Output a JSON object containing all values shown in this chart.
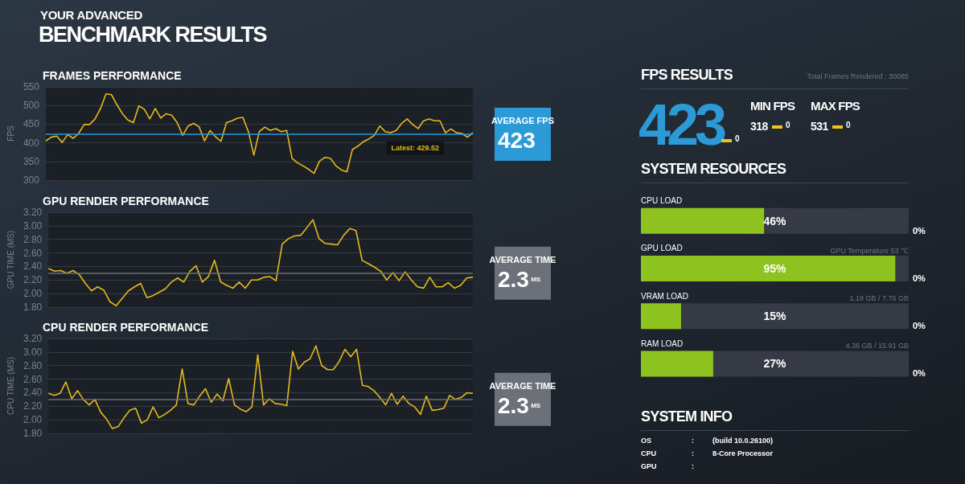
{
  "chart_data": [
    {
      "type": "other",
      "title": "YOUR ADVANCED",
      "subtitle": "BENCHMARK RESULTS"
    },
    {
      "type": "line",
      "title": "FRAMES PERFORMANCE",
      "ylabel": "FPS",
      "ylim": [
        300,
        550
      ],
      "yticks": [
        300,
        350,
        400,
        450,
        500,
        550
      ],
      "grid": "y",
      "tick_labels": "y",
      "marker": "none",
      "categories": [
        null,
        null,
        null,
        null,
        null,
        null,
        null,
        null,
        null,
        null,
        null,
        null,
        null,
        null,
        null,
        null,
        null,
        null,
        null,
        null,
        null,
        null,
        null,
        null,
        null,
        null,
        null,
        null,
        null,
        null,
        null,
        null,
        null,
        null,
        null,
        null,
        null,
        null,
        null,
        null,
        null,
        null,
        null,
        null,
        null,
        null,
        null,
        null,
        null,
        null,
        null,
        null,
        null,
        null,
        null,
        null,
        null,
        null,
        null,
        null,
        null,
        null,
        null,
        null,
        null,
        null,
        null,
        null,
        null,
        null,
        null,
        null,
        null,
        null,
        null,
        null,
        null,
        null,
        null
      ],
      "series": [
        {
          "color": "#e6b91e",
          "values": [
            405,
            415,
            418,
            401,
            422,
            412,
            425,
            449,
            449,
            464,
            492,
            531,
            529,
            502,
            478,
            461,
            454,
            499,
            490,
            464,
            492,
            466,
            478,
            474,
            454,
            420,
            445,
            452,
            443,
            405,
            433,
            416,
            404,
            454,
            459,
            466,
            468,
            430,
            367,
            430,
            442,
            433,
            438,
            430,
            433,
            358,
            346,
            338,
            329,
            318,
            351,
            361,
            358,
            338,
            327,
            322,
            382,
            391,
            403,
            410,
            420,
            445,
            430,
            427,
            433,
            452,
            464,
            449,
            438,
            459,
            464,
            459,
            459,
            427,
            437,
            427,
            425,
            415,
            427
          ]
        }
      ],
      "ref_lines": [
        {
          "axis": "y",
          "value": 423,
          "label": "AVERAGE FPS",
          "color": "#2d9ad8"
        }
      ],
      "annotations": [
        {
          "text": "Latest: 429.52",
          "y": 430
        },
        "423"
      ]
    },
    {
      "type": "line",
      "title": "GPU RENDER PERFORMANCE",
      "ylabel": "GPU TIME (MS)",
      "ylim": [
        1.8,
        3.2
      ],
      "yticks": [
        {
          "value": 1.8,
          "label": "1.80"
        },
        {
          "value": 2.0,
          "label": "2.00"
        },
        {
          "value": 2.2,
          "label": "2.20"
        },
        {
          "value": 2.4,
          "label": "2.40"
        },
        {
          "value": 2.6,
          "label": "2.60"
        },
        {
          "value": 2.8,
          "label": "2.80"
        },
        {
          "value": 3.0,
          "label": "3.00"
        },
        {
          "value": 3.2,
          "label": "3.20"
        }
      ],
      "grid": "y",
      "tick_labels": "y",
      "marker": "none",
      "categories": [
        null,
        null,
        null,
        null,
        null,
        null,
        null,
        null,
        null,
        null,
        null,
        null,
        null,
        null,
        null,
        null,
        null,
        null,
        null,
        null,
        null,
        null,
        null,
        null,
        null,
        null,
        null,
        null,
        null,
        null,
        null,
        null,
        null,
        null,
        null,
        null,
        null,
        null,
        null,
        null,
        null,
        null,
        null,
        null,
        null,
        null,
        null,
        null,
        null,
        null,
        null,
        null,
        null,
        null,
        null,
        null,
        null,
        null,
        null,
        null,
        null,
        null,
        null,
        null,
        null,
        null,
        null,
        null,
        null,
        null
      ],
      "series": [
        {
          "color": "#e6b91e",
          "values": [
            2.37,
            2.33,
            2.34,
            2.3,
            2.34,
            2.28,
            2.15,
            2.04,
            2.1,
            2.05,
            1.88,
            1.82,
            1.93,
            2.04,
            2.1,
            2.15,
            1.94,
            1.97,
            2.02,
            2.07,
            2.17,
            2.23,
            2.17,
            2.33,
            2.41,
            2.17,
            2.25,
            2.49,
            2.17,
            2.12,
            2.08,
            2.17,
            2.08,
            2.2,
            2.2,
            2.24,
            2.25,
            2.19,
            2.73,
            2.81,
            2.85,
            2.86,
            2.97,
            3.09,
            2.81,
            2.74,
            2.73,
            2.72,
            2.86,
            2.96,
            2.93,
            2.49,
            2.44,
            2.39,
            2.33,
            2.2,
            2.31,
            2.19,
            2.32,
            2.2,
            2.1,
            2.08,
            2.24,
            2.1,
            2.1,
            2.16,
            2.08,
            2.12,
            2.23,
            2.24
          ]
        }
      ],
      "ref_lines": [
        {
          "axis": "y",
          "value": 2.3,
          "label": "AVERAGE TIME",
          "color": "#6b7079"
        }
      ],
      "annotations": [
        "2.3",
        "MS"
      ]
    },
    {
      "type": "line",
      "title": "CPU RENDER PERFORMANCE",
      "ylabel": "CPU TIME (MS)",
      "ylim": [
        1.8,
        3.2
      ],
      "yticks": [
        {
          "value": 1.8,
          "label": "1.80"
        },
        {
          "value": 2.0,
          "label": "2.00"
        },
        {
          "value": 2.2,
          "label": "2.20"
        },
        {
          "value": 2.4,
          "label": "2.40"
        },
        {
          "value": 2.6,
          "label": "2.60"
        },
        {
          "value": 2.8,
          "label": "2.80"
        },
        {
          "value": 3.0,
          "label": "3.00"
        },
        {
          "value": 3.2,
          "label": "3.20"
        }
      ],
      "grid": "y",
      "tick_labels": "y",
      "marker": "none",
      "categories": [
        null,
        null,
        null,
        null,
        null,
        null,
        null,
        null,
        null,
        null,
        null,
        null,
        null,
        null,
        null,
        null,
        null,
        null,
        null,
        null,
        null,
        null,
        null,
        null,
        null,
        null,
        null,
        null,
        null,
        null,
        null,
        null,
        null,
        null,
        null,
        null,
        null,
        null,
        null,
        null,
        null,
        null,
        null,
        null,
        null,
        null,
        null,
        null,
        null,
        null,
        null,
        null,
        null,
        null,
        null,
        null,
        null,
        null,
        null,
        null,
        null,
        null,
        null,
        null,
        null,
        null,
        null,
        null,
        null,
        null,
        null,
        null,
        null,
        null
      ],
      "series": [
        {
          "color": "#e6b91e",
          "values": [
            2.39,
            2.36,
            2.39,
            2.56,
            2.31,
            2.43,
            2.3,
            2.22,
            2.3,
            2.11,
            2.01,
            1.87,
            1.9,
            2.03,
            2.14,
            2.17,
            1.95,
            2.0,
            2.19,
            2.03,
            2.08,
            2.14,
            2.22,
            2.75,
            2.24,
            2.22,
            2.35,
            2.46,
            2.26,
            2.38,
            2.28,
            2.61,
            2.22,
            2.16,
            2.12,
            2.19,
            2.96,
            2.22,
            2.31,
            2.24,
            2.23,
            2.21,
            3.01,
            2.75,
            2.85,
            2.9,
            3.09,
            2.8,
            2.74,
            2.74,
            2.86,
            3.04,
            2.93,
            3.04,
            2.51,
            2.49,
            2.43,
            2.33,
            2.22,
            2.39,
            2.23,
            2.35,
            2.24,
            2.19,
            2.08,
            2.35,
            2.14,
            2.15,
            2.17,
            2.36,
            2.3,
            2.33,
            2.4,
            2.39
          ]
        }
      ],
      "ref_lines": [
        {
          "axis": "y",
          "value": 2.3,
          "label": "AVERAGE TIME",
          "color": "#6b7079"
        }
      ],
      "annotations": [
        "2.3",
        "MS"
      ]
    },
    {
      "type": "other",
      "title": "FPS RESULTS",
      "annotations": [
        "Total Frames Rendered : 30085",
        "423",
        "0",
        "MIN FPS",
        "318",
        "0",
        "MAX FPS",
        "531",
        "0"
      ]
    },
    {
      "type": "bar",
      "orientation": "horizontal",
      "title": "SYSTEM RESOURCES",
      "categories": [
        "CPU LOAD",
        "GPU LOAD",
        "VRAM LOAD",
        "RAM LOAD"
      ],
      "values": [
        46,
        95,
        15,
        27
      ],
      "color": "#8dc21f",
      "xlim": [
        0,
        100
      ],
      "tick_labels": "y",
      "value_labels": [
        "46%",
        "95%",
        "15%",
        "27%"
      ],
      "annotations": [
        "GPU Temperature 53 ℃",
        "1.18 GB / 7.76 GB",
        "4.36 GB / 15.91 GB",
        "0%",
        "0%",
        "0%",
        "0%"
      ]
    },
    {
      "type": "other",
      "title": "SYSTEM INFO",
      "annotations": [
        "OS",
        ":",
        "(build 10.0.26100)",
        "CPU",
        ":",
        "8-Core Processor",
        "GPU",
        ":"
      ]
    }
  ]
}
